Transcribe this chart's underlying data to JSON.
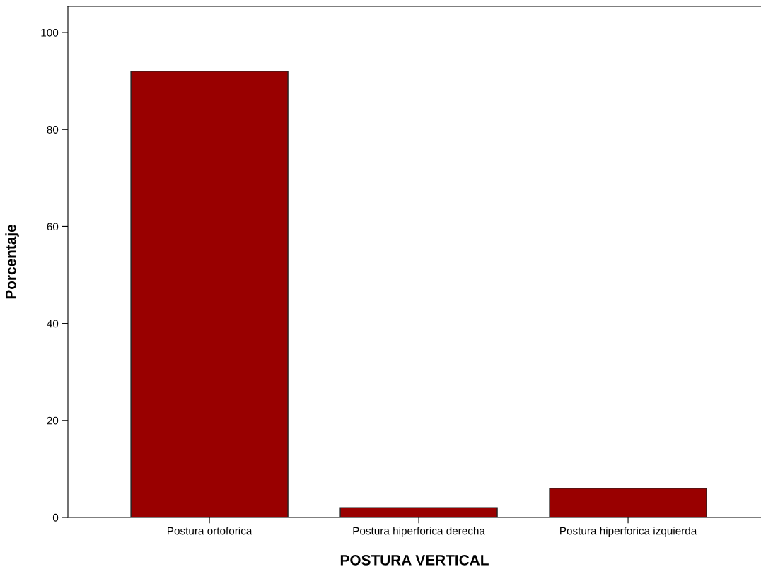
{
  "chart_data": {
    "type": "bar",
    "categories": [
      "Postura ortoforica",
      "Postura hiperforica derecha",
      "Postura hiperforica izquierda"
    ],
    "values": [
      92,
      2,
      6
    ],
    "color": "#990000",
    "xlabel": "POSTURA VERTICAL",
    "ylabel": "Porcentaje",
    "ylim": [
      0,
      105.4
    ],
    "yticks": [
      0,
      20,
      40,
      60,
      80,
      100
    ],
    "grid": false,
    "legend": false
  }
}
